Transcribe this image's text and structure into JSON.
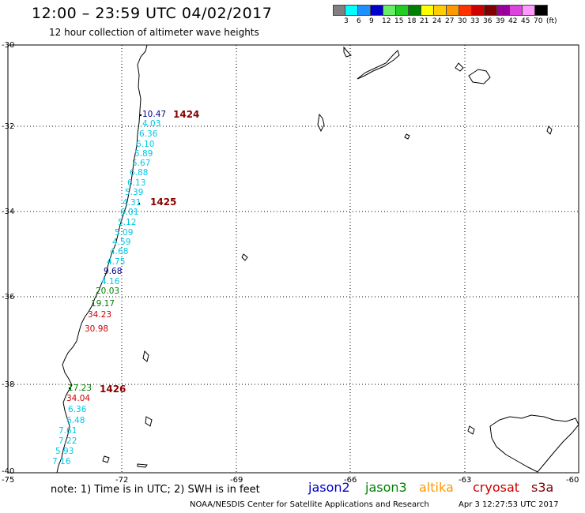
{
  "header": {
    "title": "12:00 – 23:59 UTC 04/02/2017",
    "subtitle": "12 hour collection of altimeter wave heights"
  },
  "colorbar": {
    "colors": [
      "#808080",
      "#00ffff",
      "#1e90ff",
      "#0000cd",
      "#66ee66",
      "#22cc22",
      "#008000",
      "#ffff00",
      "#ffcc00",
      "#ff9900",
      "#ff3300",
      "#cc0000",
      "#800000",
      "#990099",
      "#dd44dd",
      "#ff99ff",
      "#000000"
    ],
    "labels": [
      "3",
      "6",
      "9",
      "12",
      "15",
      "18",
      "21",
      "24",
      "27",
      "30",
      "33",
      "36",
      "39",
      "42",
      "45",
      "70",
      "(ft)"
    ]
  },
  "axes": {
    "lat_labels": [
      "-30",
      "-32",
      "-34",
      "-36",
      "-38",
      "-40"
    ],
    "lon_labels": [
      "-75",
      "-72",
      "-69",
      "-66",
      "-63",
      "-60"
    ]
  },
  "pass_labels": [
    "1424",
    "1425",
    "1426"
  ],
  "wave_heights": [
    {
      "value": "10.47",
      "color": "#00008b"
    },
    {
      "value": "4.03",
      "color": "#00c8e6"
    },
    {
      "value": "6.36",
      "color": "#00c8e6"
    },
    {
      "value": "6.10",
      "color": "#00c8e6"
    },
    {
      "value": "5.89",
      "color": "#00c8e6"
    },
    {
      "value": "5.67",
      "color": "#00c8e6"
    },
    {
      "value": "6.88",
      "color": "#00c8e6"
    },
    {
      "value": "6.13",
      "color": "#00c8e6"
    },
    {
      "value": "5.39",
      "color": "#00c8e6"
    },
    {
      "value": "4.31",
      "color": "#00c8e6"
    },
    {
      "value": "6.01",
      "color": "#00c8e6"
    },
    {
      "value": "5.12",
      "color": "#00c8e6"
    },
    {
      "value": "5.09",
      "color": "#00c8e6"
    },
    {
      "value": "4.59",
      "color": "#00c8e6"
    },
    {
      "value": "4.68",
      "color": "#00c8e6"
    },
    {
      "value": "4.75",
      "color": "#00c8e6"
    },
    {
      "value": "9.68",
      "color": "#00008b"
    },
    {
      "value": "4.16",
      "color": "#00c8e6"
    },
    {
      "value": "20.03",
      "color": "#008000"
    },
    {
      "value": "19.17",
      "color": "#008000"
    },
    {
      "value": "34.23",
      "color": "#cc0000"
    },
    {
      "value": "30.98",
      "color": "#cc0000"
    },
    {
      "value": "17.23",
      "color": "#008000"
    },
    {
      "value": "34.04",
      "color": "#cc0000"
    },
    {
      "value": "6.36",
      "color": "#00c8e6"
    },
    {
      "value": "6.48",
      "color": "#00c8e6"
    },
    {
      "value": "7.61",
      "color": "#00c8e6"
    },
    {
      "value": "7.22",
      "color": "#00c8e6"
    },
    {
      "value": "5.93",
      "color": "#00c8e6"
    },
    {
      "value": "7.16",
      "color": "#00c8e6"
    }
  ],
  "note": "note:  1) Time is in UTC;  2) SWH is in feet",
  "legend": [
    {
      "name": "jason2",
      "color": "#0000cc"
    },
    {
      "name": "jason3",
      "color": "#008000"
    },
    {
      "name": "altika",
      "color": "#ff9900"
    },
    {
      "name": "cryosat",
      "color": "#cc0000"
    },
    {
      "name": "s3a",
      "color": "#800000"
    }
  ],
  "footer": {
    "org": "NOAA/NESDIS Center for Satellite Applications and Research",
    "timestamp": "Apr  3 12:27:53 UTC 2017"
  }
}
